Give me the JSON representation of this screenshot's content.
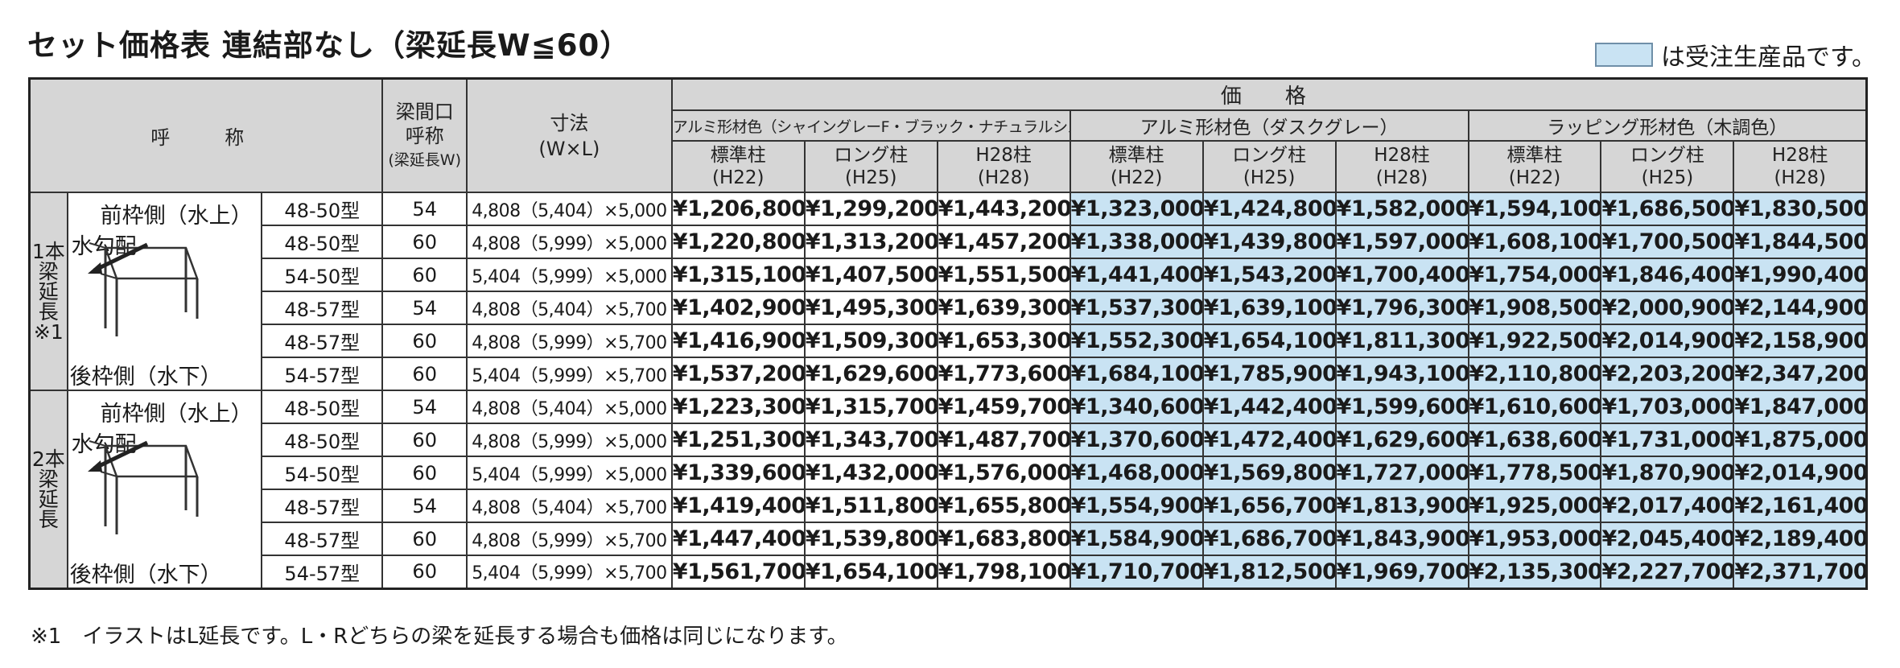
{
  "title": "セット価格表 連結部なし（梁延長W≦60）",
  "legend": "は受注生産品です。",
  "colors": {
    "header_gray": "#d6d6d6",
    "order_made_blue": "#c9e3f3"
  },
  "headers": {
    "name": "呼　称",
    "beam": "梁間口呼称(梁延長W)",
    "beam_lines": [
      "梁間口",
      "呼称",
      "(梁延長W)"
    ],
    "dims": [
      "寸法",
      "(W×L)"
    ],
    "price": "価　格",
    "colors": [
      "アルミ形材色（シャイングレーF・ブラック・ナチュラルシルバーF）",
      "アルミ形材色（ダスクグレー）",
      "ラッピング形材色（木調色）"
    ],
    "posts": [
      [
        "標準柱",
        "(H22)"
      ],
      [
        "ロング柱",
        "(H25)"
      ],
      [
        "H28柱",
        "(H28)"
      ]
    ]
  },
  "groups": [
    {
      "label": "1本梁延長※1",
      "illus_labels": {
        "front": "前枠側（水上）",
        "slope": "水勾配",
        "rear": "後枠側（水下）"
      },
      "rows": [
        {
          "model": "48-50型",
          "beam": "54",
          "dim": "4,808（5,404）×5,000",
          "prices": [
            "¥1,206,800",
            "¥1,299,200",
            "¥1,443,200",
            "¥1,323,000",
            "¥1,424,800",
            "¥1,582,000",
            "¥1,594,100",
            "¥1,686,500",
            "¥1,830,500"
          ]
        },
        {
          "model": "48-50型",
          "beam": "60",
          "dim": "4,808（5,999）×5,000",
          "prices": [
            "¥1,220,800",
            "¥1,313,200",
            "¥1,457,200",
            "¥1,338,000",
            "¥1,439,800",
            "¥1,597,000",
            "¥1,608,100",
            "¥1,700,500",
            "¥1,844,500"
          ]
        },
        {
          "model": "54-50型",
          "beam": "60",
          "dim": "5,404（5,999）×5,000",
          "prices": [
            "¥1,315,100",
            "¥1,407,500",
            "¥1,551,500",
            "¥1,441,400",
            "¥1,543,200",
            "¥1,700,400",
            "¥1,754,000",
            "¥1,846,400",
            "¥1,990,400"
          ]
        },
        {
          "model": "48-57型",
          "beam": "54",
          "dim": "4,808（5,404）×5,700",
          "prices": [
            "¥1,402,900",
            "¥1,495,300",
            "¥1,639,300",
            "¥1,537,300",
            "¥1,639,100",
            "¥1,796,300",
            "¥1,908,500",
            "¥2,000,900",
            "¥2,144,900"
          ]
        },
        {
          "model": "48-57型",
          "beam": "60",
          "dim": "4,808（5,999）×5,700",
          "prices": [
            "¥1,416,900",
            "¥1,509,300",
            "¥1,653,300",
            "¥1,552,300",
            "¥1,654,100",
            "¥1,811,300",
            "¥1,922,500",
            "¥2,014,900",
            "¥2,158,900"
          ]
        },
        {
          "model": "54-57型",
          "beam": "60",
          "dim": "5,404（5,999）×5,700",
          "prices": [
            "¥1,537,200",
            "¥1,629,600",
            "¥1,773,600",
            "¥1,684,100",
            "¥1,785,900",
            "¥1,943,100",
            "¥2,110,800",
            "¥2,203,200",
            "¥2,347,200"
          ]
        }
      ]
    },
    {
      "label": "2本梁延長",
      "illus_labels": {
        "front": "前枠側（水上）",
        "slope": "水勾配",
        "rear": "後枠側（水下）"
      },
      "rows": [
        {
          "model": "48-50型",
          "beam": "54",
          "dim": "4,808（5,404）×5,000",
          "prices": [
            "¥1,223,300",
            "¥1,315,700",
            "¥1,459,700",
            "¥1,340,600",
            "¥1,442,400",
            "¥1,599,600",
            "¥1,610,600",
            "¥1,703,000",
            "¥1,847,000"
          ]
        },
        {
          "model": "48-50型",
          "beam": "60",
          "dim": "4,808（5,999）×5,000",
          "prices": [
            "¥1,251,300",
            "¥1,343,700",
            "¥1,487,700",
            "¥1,370,600",
            "¥1,472,400",
            "¥1,629,600",
            "¥1,638,600",
            "¥1,731,000",
            "¥1,875,000"
          ]
        },
        {
          "model": "54-50型",
          "beam": "60",
          "dim": "5,404（5,999）×5,000",
          "prices": [
            "¥1,339,600",
            "¥1,432,000",
            "¥1,576,000",
            "¥1,468,000",
            "¥1,569,800",
            "¥1,727,000",
            "¥1,778,500",
            "¥1,870,900",
            "¥2,014,900"
          ]
        },
        {
          "model": "48-57型",
          "beam": "54",
          "dim": "4,808（5,404）×5,700",
          "prices": [
            "¥1,419,400",
            "¥1,511,800",
            "¥1,655,800",
            "¥1,554,900",
            "¥1,656,700",
            "¥1,813,900",
            "¥1,925,000",
            "¥2,017,400",
            "¥2,161,400"
          ]
        },
        {
          "model": "48-57型",
          "beam": "60",
          "dim": "4,808（5,999）×5,700",
          "prices": [
            "¥1,447,400",
            "¥1,539,800",
            "¥1,683,800",
            "¥1,584,900",
            "¥1,686,700",
            "¥1,843,900",
            "¥1,953,000",
            "¥2,045,400",
            "¥2,189,400"
          ]
        },
        {
          "model": "54-57型",
          "beam": "60",
          "dim": "5,404（5,999）×5,700",
          "prices": [
            "¥1,561,700",
            "¥1,654,100",
            "¥1,798,100",
            "¥1,710,700",
            "¥1,812,500",
            "¥1,969,700",
            "¥2,135,300",
            "¥2,227,700",
            "¥2,371,700"
          ]
        }
      ]
    }
  ],
  "footnote": "※1　イラストはL延長です。L・Rどちらの梁を延長する場合も価格は同じになります。"
}
